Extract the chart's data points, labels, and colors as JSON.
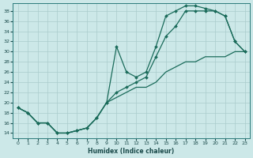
{
  "xlabel": "Humidex (Indice chaleur)",
  "background_color": "#cce8e8",
  "grid_color": "#aacccc",
  "line_color": "#1a6b5a",
  "xlim": [
    -0.5,
    23.5
  ],
  "ylim": [
    13,
    39.5
  ],
  "yticks": [
    14,
    16,
    18,
    20,
    22,
    24,
    26,
    28,
    30,
    32,
    34,
    36,
    38
  ],
  "xticks": [
    0,
    1,
    2,
    3,
    4,
    5,
    6,
    7,
    8,
    9,
    10,
    11,
    12,
    13,
    14,
    15,
    16,
    17,
    18,
    19,
    20,
    21,
    22,
    23
  ],
  "markersize": 2.0,
  "linewidth": 0.9,
  "curve_upper_x": [
    0,
    1,
    2,
    3,
    4,
    5,
    6,
    7,
    8,
    9,
    10,
    11,
    12,
    13,
    14,
    15,
    16,
    17,
    18,
    19,
    20,
    21,
    22,
    23
  ],
  "curve_upper_y": [
    19,
    18,
    16,
    16,
    14,
    14,
    14.5,
    15,
    17,
    20,
    31,
    26,
    25,
    26,
    31,
    37,
    38,
    39,
    39,
    38.5,
    38,
    37,
    32,
    30
  ],
  "curve_mid_x": [
    0,
    1,
    2,
    3,
    4,
    5,
    6,
    7,
    8,
    9,
    10,
    11,
    12,
    13,
    14,
    15,
    16,
    17,
    18,
    19,
    20,
    21,
    22,
    23
  ],
  "curve_mid_y": [
    19,
    18,
    16,
    16,
    14,
    14,
    14.5,
    15,
    17,
    20,
    22,
    23,
    24,
    25,
    29,
    33,
    35,
    38,
    38,
    38,
    38,
    37,
    32,
    30
  ],
  "curve_diag_x": [
    0,
    1,
    2,
    3,
    4,
    5,
    6,
    7,
    8,
    9,
    10,
    11,
    12,
    13,
    14,
    15,
    16,
    17,
    18,
    19,
    20,
    21,
    22,
    23
  ],
  "curve_diag_y": [
    19,
    18,
    16,
    16,
    14,
    14,
    14.5,
    15,
    17,
    20,
    21,
    22,
    23,
    23,
    24,
    26,
    27,
    28,
    28,
    29,
    29,
    29,
    30,
    30
  ]
}
